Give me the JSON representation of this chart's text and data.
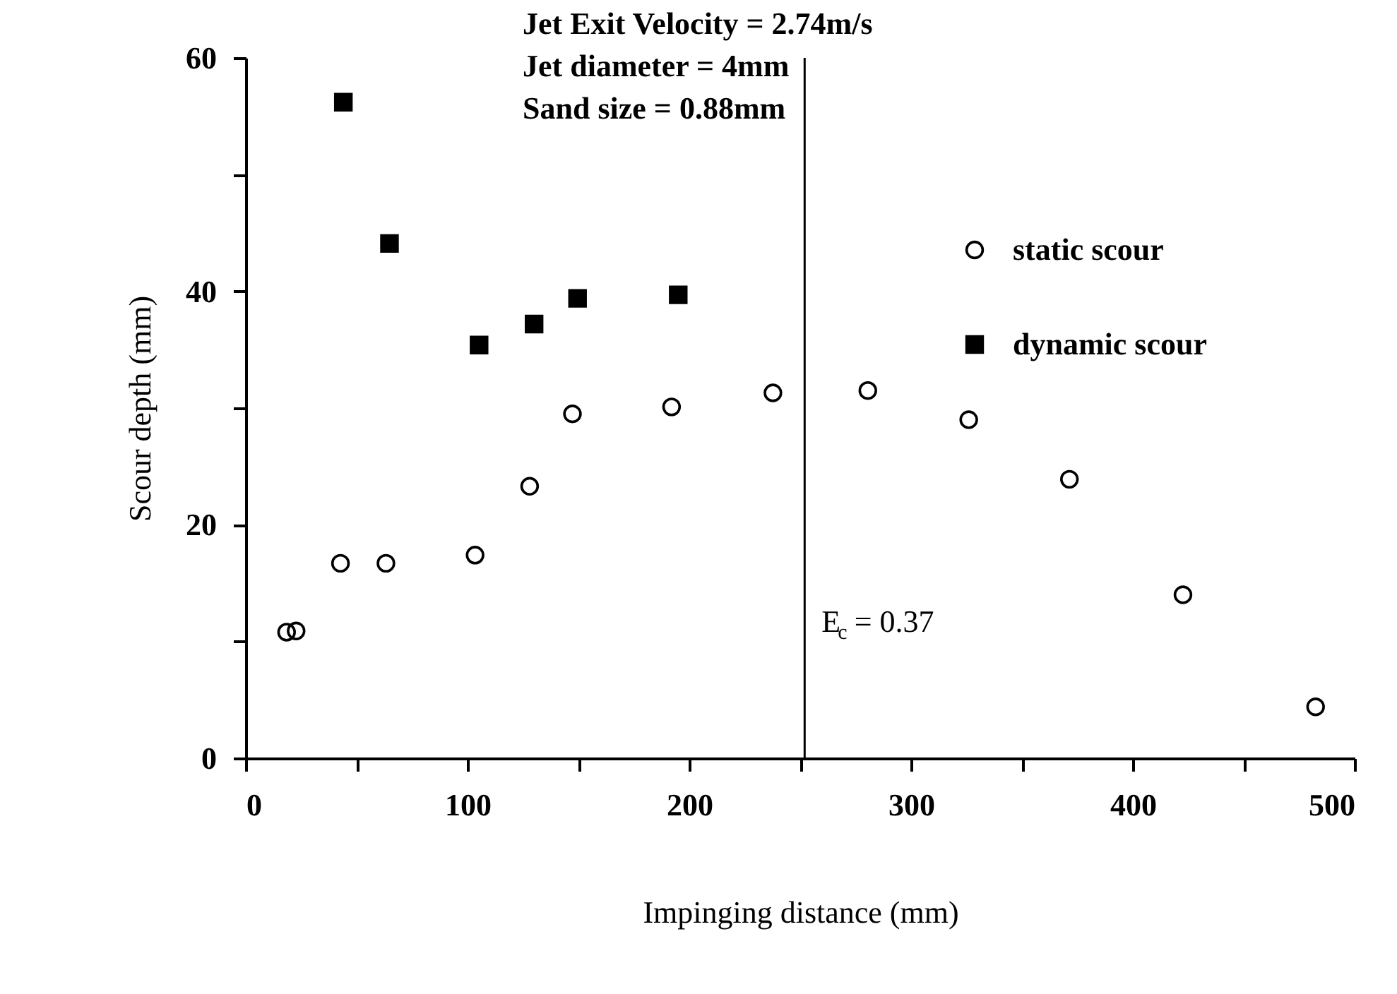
{
  "chart_data": {
    "type": "scatter",
    "xlabel": "Impinging distance (mm)",
    "ylabel": "Scour depth (mm)",
    "annotations": [
      "Jet Exit Velocity = 2.74m/s",
      "Jet diameter = 4mm",
      "Sand size = 0.88mm",
      {
        "text": "E$_{c}$ = 0.37",
        "x": 252,
        "y": 11.7
      }
    ],
    "xlim": [
      0,
      500
    ],
    "xticks": [
      0,
      {
        "value": 50,
        "label": null
      },
      100,
      {
        "value": 150,
        "label": null
      },
      200,
      {
        "value": 250,
        "label": null
      },
      300,
      {
        "value": 350,
        "label": null
      },
      400,
      {
        "value": 450,
        "label": null
      },
      500
    ],
    "ylim": [
      0,
      60
    ],
    "yticks": [
      0,
      {
        "value": 10,
        "label": null
      },
      20,
      {
        "value": 30,
        "label": null
      },
      40,
      {
        "value": 50,
        "label": null
      },
      60
    ],
    "grid": false,
    "legend": "top right",
    "ref_lines": [
      {
        "axis": "x",
        "value": 252
      }
    ],
    "series": [
      {
        "name": "static scour",
        "color": "#000000",
        "marker": "circle",
        "x": [
          18.4,
          22.7,
          42.7,
          63.2,
          103.4,
          128,
          147.3,
          192,
          237.7,
          280.5,
          326,
          371.4,
          422.6,
          482.4
        ],
        "values": [
          10.8,
          10.9,
          16.7,
          16.7,
          17.4,
          23.3,
          29.5,
          30.1,
          31.3,
          31.5,
          29.0,
          23.9,
          14.0,
          4.4
        ]
      },
      {
        "name": "dynamic scour",
        "color": "#000000",
        "marker": "square",
        "x": [
          44,
          64.8,
          105.2,
          130,
          149.6,
          195
        ],
        "values": [
          56.2,
          44.1,
          35.4,
          37.2,
          39.4,
          39.7
        ]
      }
    ]
  }
}
